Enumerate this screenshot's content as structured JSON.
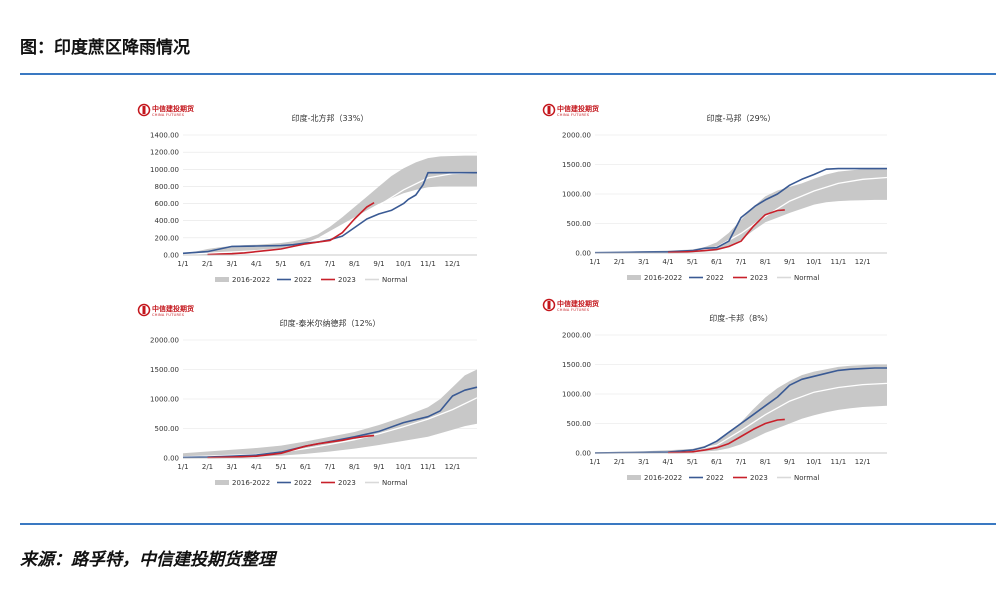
{
  "page": {
    "figure_title": "图：印度蔗区降雨情况",
    "source": "来源：路孚特，中信建投期货整理",
    "logo_cn": "中信建投期货",
    "logo_en": "CHINA FUTURES"
  },
  "colors": {
    "band": "#c8c8c8",
    "y2022": "#3a5a94",
    "y2023": "#c8202a",
    "normal": "#ffffff",
    "rule": "#3a79c2"
  },
  "chart_data": [
    {
      "type": "area",
      "title": "印度-北方邦（33%）",
      "categories": [
        "1/1",
        "2/1",
        "3/1",
        "4/1",
        "5/1",
        "6/1",
        "7/1",
        "8/1",
        "9/1",
        "10/1",
        "11/1",
        "12/1"
      ],
      "ylim": [
        0,
        1400
      ],
      "yticks": [
        "0.00",
        "200.00",
        "400.00",
        "600.00",
        "800.00",
        "1000.00",
        "1200.00",
        "1400.00"
      ],
      "legend": [
        "2016-2022",
        "2022",
        "2023",
        "Normal"
      ],
      "band": {
        "x": [
          0,
          0.5,
          1,
          1.5,
          2,
          2.5,
          3,
          3.5,
          4,
          4.5,
          5,
          5.5,
          6,
          6.5,
          7,
          7.5,
          8,
          8.5,
          9,
          9.5,
          10,
          10.5,
          11,
          11.5,
          12
        ],
        "lower": [
          0,
          2,
          5,
          10,
          18,
          28,
          40,
          55,
          75,
          100,
          140,
          200,
          280,
          360,
          440,
          520,
          600,
          660,
          720,
          760,
          790,
          800,
          800,
          800,
          800
        ],
        "upper": [
          20,
          40,
          70,
          90,
          105,
          115,
          120,
          130,
          140,
          160,
          190,
          240,
          330,
          440,
          560,
          680,
          800,
          920,
          1010,
          1080,
          1130,
          1150,
          1155,
          1160,
          1160
        ]
      },
      "normal": {
        "x": [
          0,
          1,
          2,
          3,
          4,
          5,
          6,
          7,
          8,
          9,
          10,
          11,
          12
        ],
        "values": [
          5,
          20,
          35,
          50,
          70,
          110,
          200,
          380,
          580,
          760,
          900,
          950,
          960
        ]
      },
      "series": [
        {
          "name": "2022",
          "x": [
            0,
            1,
            2,
            3,
            4,
            4.5,
            5,
            5.5,
            6,
            6.5,
            7,
            7.5,
            8,
            8.5,
            9,
            9.2,
            9.5,
            9.8,
            10,
            10.5,
            11,
            11.5,
            12
          ],
          "values": [
            20,
            40,
            100,
            105,
            110,
            120,
            140,
            150,
            180,
            220,
            320,
            420,
            480,
            520,
            600,
            650,
            700,
            820,
            960,
            960,
            960,
            960,
            960
          ]
        },
        {
          "name": "2023",
          "x": [
            1,
            1.5,
            2,
            2.5,
            3,
            3.5,
            4,
            4.5,
            5,
            5.5,
            6,
            6.5,
            7,
            7.5,
            7.8
          ],
          "values": [
            5,
            10,
            15,
            25,
            40,
            55,
            70,
            100,
            130,
            150,
            170,
            260,
            420,
            560,
            610
          ]
        }
      ]
    },
    {
      "type": "area",
      "title": "印度-马邦（29%）",
      "categories": [
        "1/1",
        "2/1",
        "3/1",
        "4/1",
        "5/1",
        "6/1",
        "7/1",
        "8/1",
        "9/1",
        "10/1",
        "11/1",
        "12/1"
      ],
      "ylim": [
        0,
        2000
      ],
      "yticks": [
        "0.00",
        "500.00",
        "1000.00",
        "1500.00",
        "2000.00"
      ],
      "legend": [
        "2016-2022",
        "2022",
        "2023",
        "Normal"
      ],
      "band": {
        "x": [
          0,
          1,
          2,
          3,
          4,
          4.5,
          5,
          5.5,
          6,
          6.5,
          7,
          7.5,
          8,
          8.5,
          9,
          9.5,
          10,
          10.5,
          11,
          11.5,
          12
        ],
        "lower": [
          0,
          2,
          5,
          8,
          12,
          20,
          40,
          100,
          220,
          380,
          520,
          600,
          680,
          750,
          820,
          860,
          880,
          890,
          895,
          900,
          900
        ],
        "upper": [
          10,
          20,
          30,
          40,
          60,
          100,
          180,
          340,
          560,
          780,
          960,
          1060,
          1120,
          1180,
          1260,
          1330,
          1380,
          1400,
          1420,
          1430,
          1430
        ]
      },
      "normal": {
        "x": [
          0,
          1,
          2,
          3,
          4,
          5,
          6,
          7,
          8,
          9,
          10,
          11,
          12
        ],
        "values": [
          2,
          6,
          10,
          15,
          30,
          100,
          330,
          620,
          880,
          1050,
          1180,
          1250,
          1280
        ]
      },
      "series": [
        {
          "name": "2022",
          "x": [
            0,
            1,
            2,
            3,
            4,
            4.5,
            5,
            5.5,
            6,
            6.3,
            6.6,
            7,
            7.5,
            8,
            8.5,
            9,
            9.5,
            10,
            10.5,
            11,
            11.5,
            12
          ],
          "values": [
            5,
            10,
            15,
            20,
            40,
            80,
            90,
            200,
            600,
            700,
            800,
            900,
            1000,
            1150,
            1250,
            1330,
            1420,
            1430,
            1430,
            1430,
            1430,
            1430
          ]
        },
        {
          "name": "2023",
          "x": [
            3,
            3.5,
            4,
            4.5,
            5,
            5.5,
            6,
            6.5,
            7,
            7.5,
            7.8
          ],
          "values": [
            10,
            15,
            25,
            40,
            60,
            110,
            200,
            450,
            650,
            720,
            730
          ]
        }
      ]
    },
    {
      "type": "area",
      "title": "印度-泰米尔纳德邦（12%）",
      "categories": [
        "1/1",
        "2/1",
        "3/1",
        "4/1",
        "5/1",
        "6/1",
        "7/1",
        "8/1",
        "9/1",
        "10/1",
        "11/1",
        "12/1"
      ],
      "ylim": [
        0,
        2000
      ],
      "yticks": [
        "0.00",
        "500.00",
        "1000.00",
        "1500.00",
        "2000.00"
      ],
      "legend": [
        "2016-2022",
        "2022",
        "2023",
        "Normal"
      ],
      "band": {
        "x": [
          0,
          1,
          2,
          3,
          4,
          5,
          6,
          7,
          8,
          9,
          10,
          10.5,
          11,
          11.5,
          12
        ],
        "lower": [
          0,
          5,
          10,
          20,
          40,
          70,
          110,
          160,
          220,
          290,
          360,
          420,
          480,
          540,
          580
        ],
        "upper": [
          80,
          110,
          140,
          170,
          210,
          280,
          360,
          440,
          560,
          700,
          860,
          1000,
          1200,
          1400,
          1500
        ]
      },
      "normal": {
        "x": [
          0,
          1,
          2,
          3,
          4,
          5,
          6,
          7,
          8,
          9,
          10,
          11,
          12
        ],
        "values": [
          20,
          30,
          45,
          60,
          100,
          160,
          230,
          310,
          410,
          530,
          660,
          820,
          1020
        ]
      },
      "series": [
        {
          "name": "2022",
          "x": [
            0,
            1,
            2,
            3,
            4,
            5,
            6,
            7,
            8,
            9,
            10,
            10.5,
            11,
            11.5,
            12
          ],
          "values": [
            10,
            15,
            30,
            50,
            100,
            200,
            280,
            360,
            450,
            600,
            700,
            800,
            1050,
            1150,
            1200
          ]
        },
        {
          "name": "2023",
          "x": [
            1,
            2,
            3,
            4,
            4.5,
            5,
            5.5,
            6,
            6.5,
            7,
            7.5,
            7.8
          ],
          "values": [
            5,
            15,
            30,
            80,
            140,
            200,
            240,
            270,
            300,
            340,
            370,
            380
          ]
        }
      ]
    },
    {
      "type": "area",
      "title": "印度-卡邦（8%）",
      "categories": [
        "1/1",
        "2/1",
        "3/1",
        "4/1",
        "5/1",
        "6/1",
        "7/1",
        "8/1",
        "9/1",
        "10/1",
        "11/1",
        "12/1"
      ],
      "ylim": [
        0,
        2000
      ],
      "yticks": [
        "0.00",
        "500.00",
        "1000.00",
        "1500.00",
        "2000.00"
      ],
      "legend": [
        "2016-2022",
        "2022",
        "2023",
        "Normal"
      ],
      "band": {
        "x": [
          0,
          1,
          2,
          3,
          4,
          4.5,
          5,
          5.5,
          6,
          6.5,
          7,
          7.5,
          8,
          8.5,
          9,
          9.5,
          10,
          10.5,
          11,
          11.5,
          12
        ],
        "lower": [
          0,
          3,
          6,
          10,
          15,
          25,
          40,
          80,
          150,
          240,
          340,
          420,
          500,
          580,
          640,
          690,
          730,
          760,
          780,
          790,
          800
        ],
        "upper": [
          10,
          20,
          30,
          45,
          70,
          120,
          200,
          330,
          520,
          740,
          940,
          1100,
          1220,
          1320,
          1380,
          1420,
          1460,
          1480,
          1490,
          1500,
          1500
        ]
      },
      "normal": {
        "x": [
          0,
          1,
          2,
          3,
          4,
          5,
          6,
          7,
          8,
          9,
          10,
          11,
          12
        ],
        "values": [
          2,
          5,
          10,
          20,
          45,
          130,
          380,
          650,
          880,
          1030,
          1110,
          1160,
          1180
        ]
      },
      "series": [
        {
          "name": "2022",
          "x": [
            0,
            1,
            2,
            3,
            4,
            4.5,
            5,
            5.5,
            6,
            6.5,
            7,
            7.5,
            8,
            8.5,
            9,
            9.5,
            10,
            10.5,
            11,
            11.5,
            12
          ],
          "values": [
            2,
            5,
            10,
            15,
            50,
            100,
            200,
            350,
            500,
            650,
            800,
            950,
            1150,
            1250,
            1300,
            1350,
            1400,
            1420,
            1430,
            1440,
            1440
          ]
        },
        {
          "name": "2023",
          "x": [
            3,
            3.5,
            4,
            4.5,
            5,
            5.5,
            6,
            6.5,
            7,
            7.5,
            7.8
          ],
          "values": [
            5,
            10,
            20,
            50,
            90,
            160,
            280,
            400,
            500,
            560,
            570
          ]
        }
      ]
    }
  ]
}
